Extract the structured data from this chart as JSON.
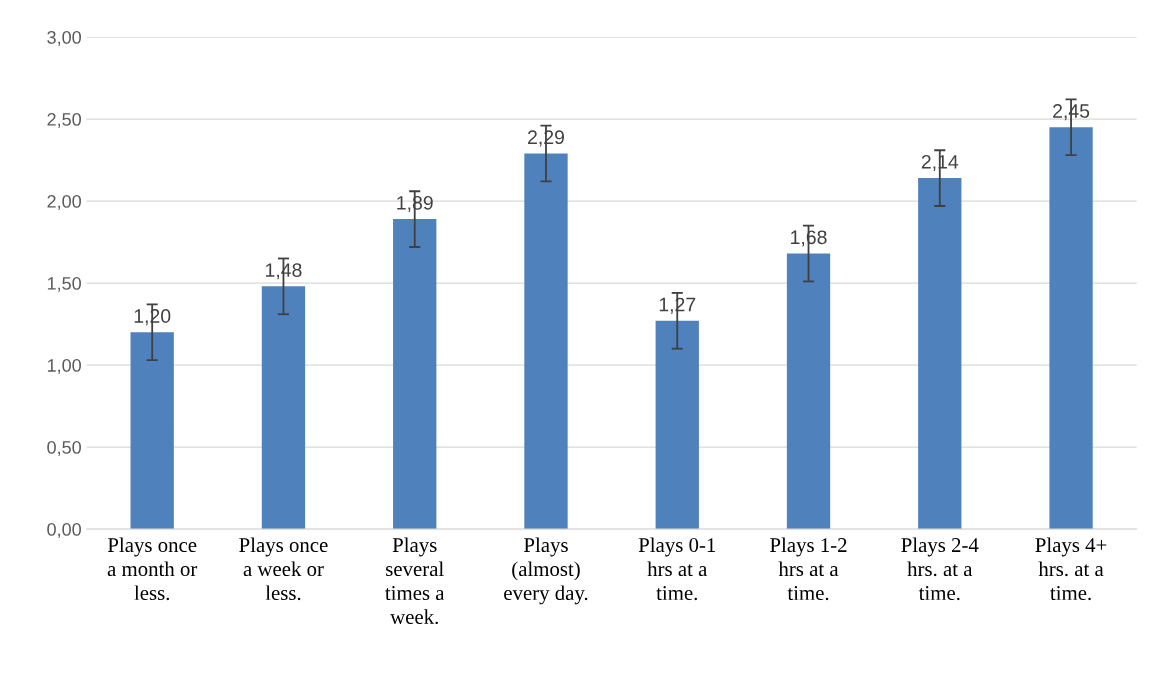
{
  "chart_data": {
    "type": "bar",
    "categories": [
      "Plays once\na month or\nless.",
      "Plays once\na week or\nless.",
      "Plays\nseveral\ntimes a\nweek.",
      "Plays\n(almost)\nevery day.",
      "Plays 0-1\nhrs at a\ntime.",
      "Plays 1-2\nhrs at a\ntime.",
      "Plays 2-4\nhrs. at a\ntime.",
      "Plays 4+\nhrs. at a\ntime."
    ],
    "values": [
      1.2,
      1.48,
      1.89,
      2.29,
      1.27,
      1.68,
      2.14,
      2.45
    ],
    "errors": [
      0.17,
      0.17,
      0.17,
      0.17,
      0.17,
      0.17,
      0.17,
      0.17
    ],
    "value_labels": [
      "1,20",
      "1,48",
      "1,89",
      "2,29",
      "1,27",
      "1,68",
      "2,14",
      "2,45"
    ],
    "color": "#4f81bd",
    "ylim": [
      0,
      3
    ],
    "yticks": [
      {
        "value": 0,
        "label": "0,00"
      },
      {
        "value": 0.5,
        "label": "0,50"
      },
      {
        "value": 1,
        "label": "1,00"
      },
      {
        "value": 1.5,
        "label": "1,50"
      },
      {
        "value": 2,
        "label": "2,00"
      },
      {
        "value": 2.5,
        "label": "2,50"
      },
      {
        "value": 3,
        "label": "3,00"
      }
    ],
    "grid": "y",
    "legend": false
  }
}
